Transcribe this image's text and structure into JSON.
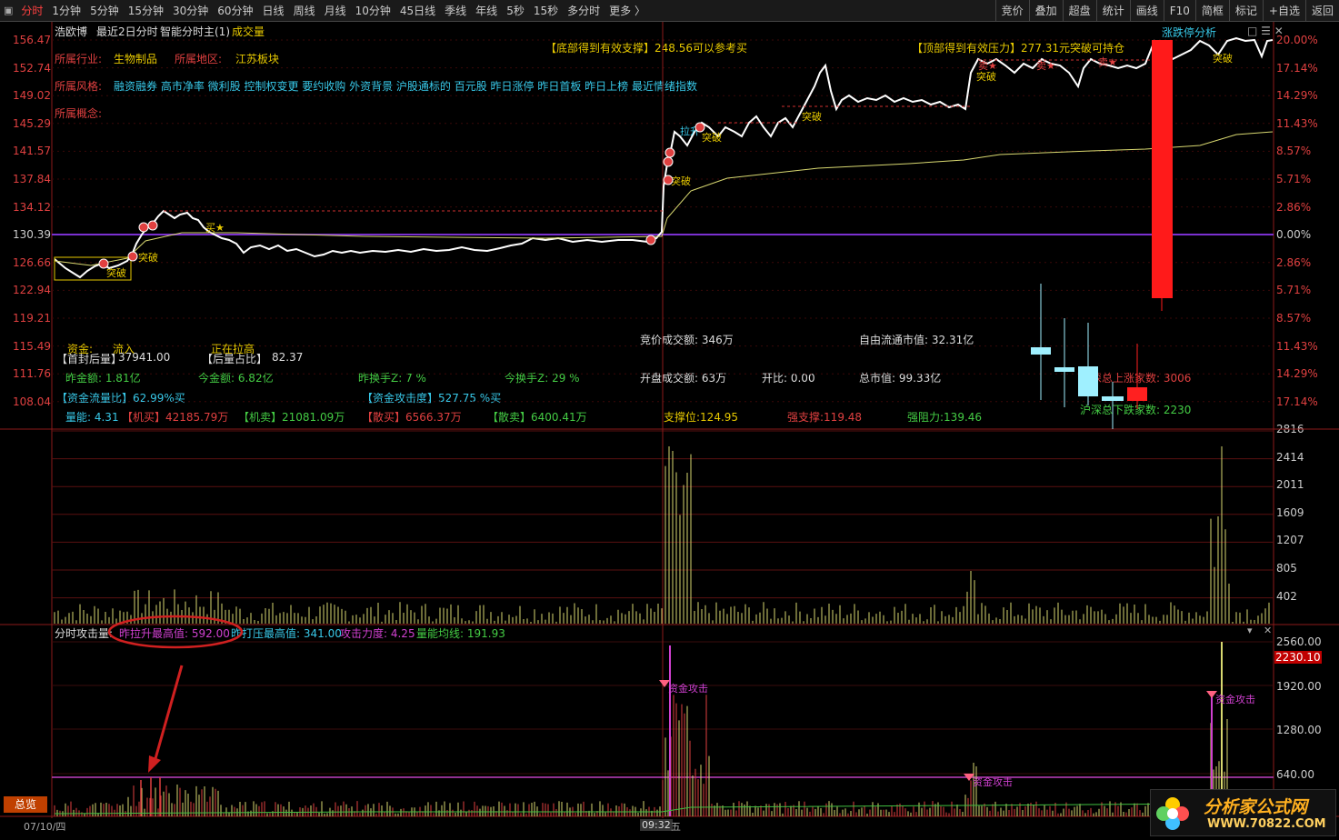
{
  "toolbar": {
    "left_icon": "menu-icon",
    "periods": [
      "分时",
      "1分钟",
      "5分钟",
      "15分钟",
      "30分钟",
      "60分钟",
      "日线",
      "周线",
      "月线",
      "10分钟",
      "45日线",
      "季线",
      "年线",
      "5秒",
      "15秒",
      "多分时",
      "更多 〉"
    ],
    "active_period": "分时",
    "right_items": [
      "竞价",
      "叠加",
      "超盘",
      "统计",
      "画线",
      "F10",
      "简框",
      "标记",
      "+自选",
      "返回"
    ]
  },
  "header": {
    "stock_name": "浩欧博",
    "mode": "最近2日分时",
    "indicator": "智能分时主(1)",
    "indicator_extra": "成交量",
    "limit_analysis": "涨跌停分析"
  },
  "info": {
    "industry_label": "所属行业:",
    "industry_value": "生物制品",
    "region_label": "所属地区:",
    "region_value": "江苏板块",
    "style_label": "所属风格:",
    "style_value": "融资融券 高市净率 微利股 控制权变更 要约收购 外资背景 沪股通标的 百元股 昨日涨停 昨日首板 昨日上榜 最近情绪指数",
    "concept_label": "所属概念:",
    "bottom_support": "【底部得到有效支撑】248.56可以参考买",
    "top_pressure": "【顶部得到有效压力】277.31元突破可持仓"
  },
  "price_axis": [
    "156.47",
    "152.74",
    "149.02",
    "145.29",
    "141.57",
    "137.84",
    "134.12",
    "130.39",
    "126.66",
    "122.94",
    "119.21",
    "115.49",
    "111.76",
    "108.04"
  ],
  "pct_axis": [
    "20.00%",
    "17.14%",
    "14.29%",
    "11.43%",
    "8.57%",
    "5.71%",
    "2.86%",
    "0.00%",
    "2.86%",
    "5.71%",
    "8.57%",
    "11.43%",
    "14.29%",
    "17.14%"
  ],
  "stats": {
    "fund_label": "资金:",
    "fund_value": "流入",
    "pulling": "正在拉高",
    "first_seal": "【首封后量】",
    "first_seal_value": "37941.00",
    "after_ratio": "【后量占比】",
    "after_ratio_value": "82.37",
    "yest_amount": "昨金额: 1.81亿",
    "today_amount": "今金额: 6.82亿",
    "yest_turnover": "昨换手Z:  7  %",
    "today_turnover": "今换手Z:  29  %",
    "flow_ratio": "【资金流量比】62.99%买",
    "attack": "【资金攻击度】527.75 %买",
    "vol_energy": "量能: 4.31",
    "inst_buy": "【机买】42185.79万",
    "inst_sell": "【机卖】21081.09万",
    "retail_buy": "【散买】6566.37万",
    "retail_sell": "【散卖】6400.41万",
    "auction_amount": "竞价成交额: 346万",
    "float_cap": "自由流通市值: 32.31亿",
    "open_amount": "开盘成交额: 63万",
    "open_ratio": "开比: 0.00",
    "total_cap": "总市值: 99.33亿",
    "support": "支撑位:124.95",
    "strong_support": "强支撑:119.48",
    "strong_resist": "强阻力:139.46",
    "up_count": "沪深总上涨家数:  3006",
    "down_count": "沪深总下跌家数:  2230"
  },
  "volume_axis": [
    "2816",
    "2414",
    "2011",
    "1609",
    "1207",
    "805",
    "402"
  ],
  "attack_panel": {
    "title": "分时攻击量:",
    "yest_max": "昨拉升最高值: 592.00",
    "yest_press": "昨打压最高值: 341.00",
    "force": "攻击力度: 4.25",
    "avg": "量能均线: 191.93",
    "axis": [
      "2560.00",
      "2230.10",
      "1920.00",
      "1280.00",
      "640.00"
    ],
    "signal": "资金攻击"
  },
  "chart_marks": {
    "breakthrough": "突破",
    "buy": "买",
    "sell": "卖",
    "pull": "拉升"
  },
  "footer": {
    "date": "07/10/四",
    "time": "09:32",
    "weekday": "五",
    "overview": "总览"
  },
  "logo": {
    "text": "分析家公式网",
    "url": "WWW.70822.COM"
  },
  "colors": {
    "up": "#e04040",
    "yellow": "#e6c800",
    "cyan": "#38c8e8",
    "base_line": "#7a30d0",
    "avg_line": "#d8d870"
  }
}
